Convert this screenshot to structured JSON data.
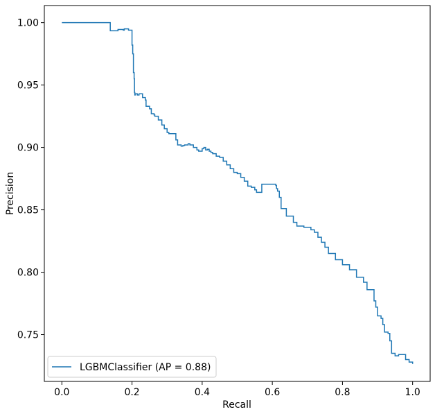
{
  "chart_data": {
    "type": "line",
    "title": "",
    "xlabel": "Recall",
    "ylabel": "Precision",
    "xlim": [
      -0.05,
      1.05
    ],
    "ylim": [
      0.7125,
      1.0137
    ],
    "xticks": [
      0.0,
      0.2,
      0.4,
      0.6,
      0.8,
      1.0
    ],
    "xtick_labels": [
      "0.0",
      "0.2",
      "0.4",
      "0.6",
      "0.8",
      "1.0"
    ],
    "yticks": [
      0.75,
      0.8,
      0.85,
      0.9,
      0.95,
      1.0
    ],
    "ytick_labels": [
      "0.75",
      "0.80",
      "0.85",
      "0.90",
      "0.95",
      "1.00"
    ],
    "grid": false,
    "legend_position": "lower-left",
    "step": true,
    "series": [
      {
        "name": "LGBMClassifier (AP = 0.88)",
        "color": "#1f77b4",
        "x": [
          0.0,
          0.138,
          0.16,
          0.175,
          0.178,
          0.19,
          0.2,
          0.2,
          0.202,
          0.204,
          0.206,
          0.207,
          0.207,
          0.208,
          0.209,
          0.21,
          0.215,
          0.22,
          0.23,
          0.238,
          0.24,
          0.25,
          0.255,
          0.263,
          0.265,
          0.275,
          0.285,
          0.292,
          0.3,
          0.305,
          0.315,
          0.325,
          0.33,
          0.335,
          0.34,
          0.345,
          0.35,
          0.36,
          0.365,
          0.375,
          0.385,
          0.39,
          0.4,
          0.405,
          0.41,
          0.415,
          0.42,
          0.425,
          0.43,
          0.44,
          0.45,
          0.46,
          0.47,
          0.48,
          0.49,
          0.5,
          0.51,
          0.52,
          0.53,
          0.54,
          0.55,
          0.555,
          0.56,
          0.565,
          0.57,
          0.6,
          0.61,
          0.612,
          0.615,
          0.62,
          0.625,
          0.64,
          0.66,
          0.67,
          0.69,
          0.71,
          0.72,
          0.73,
          0.74,
          0.75,
          0.76,
          0.78,
          0.8,
          0.82,
          0.84,
          0.86,
          0.87,
          0.89,
          0.895,
          0.9,
          0.91,
          0.915,
          0.92,
          0.93,
          0.935,
          0.94,
          0.95,
          0.96,
          0.97,
          0.98,
          0.99,
          1.0
        ],
        "y": [
          1.0,
          0.9935,
          0.9945,
          0.994,
          0.995,
          0.994,
          0.993,
          0.982,
          0.975,
          0.96,
          0.955,
          0.95,
          0.944,
          0.942,
          0.943,
          0.943,
          0.942,
          0.943,
          0.94,
          0.938,
          0.933,
          0.931,
          0.927,
          0.926,
          0.925,
          0.922,
          0.918,
          0.915,
          0.912,
          0.911,
          0.911,
          0.906,
          0.902,
          0.902,
          0.901,
          0.9015,
          0.902,
          0.903,
          0.902,
          0.9,
          0.898,
          0.897,
          0.899,
          0.9,
          0.898,
          0.8985,
          0.897,
          0.896,
          0.895,
          0.893,
          0.892,
          0.889,
          0.886,
          0.883,
          0.88,
          0.879,
          0.876,
          0.873,
          0.869,
          0.868,
          0.866,
          0.864,
          0.864,
          0.864,
          0.8705,
          0.8705,
          0.8695,
          0.867,
          0.865,
          0.86,
          0.851,
          0.845,
          0.84,
          0.837,
          0.836,
          0.834,
          0.832,
          0.828,
          0.824,
          0.82,
          0.815,
          0.81,
          0.806,
          0.802,
          0.796,
          0.792,
          0.786,
          0.777,
          0.772,
          0.765,
          0.763,
          0.758,
          0.752,
          0.751,
          0.745,
          0.735,
          0.733,
          0.734,
          0.734,
          0.73,
          0.728,
          0.7265
        ]
      }
    ]
  }
}
